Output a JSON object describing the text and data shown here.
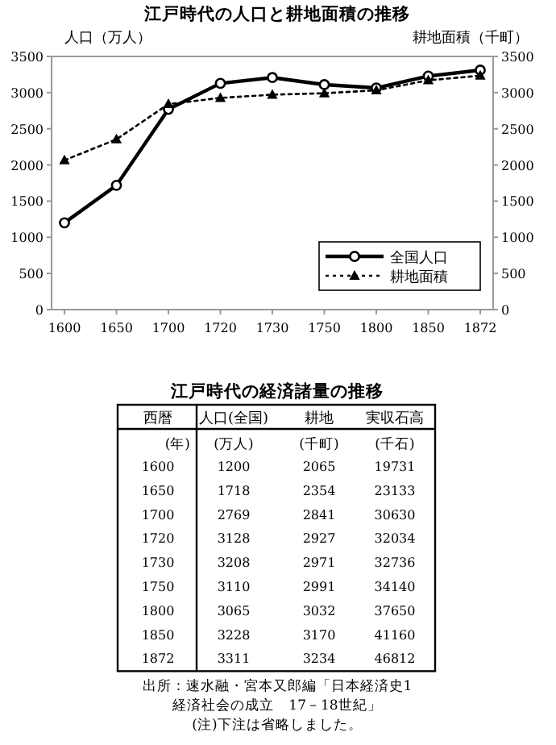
{
  "chart_data": [
    {
      "type": "line",
      "title": "江戸時代の人口と耕地面積の推移",
      "ylabel": "人口（万人）",
      "y2label": "耕地面積（千町）",
      "categories": [
        "1600",
        "1650",
        "1700",
        "1720",
        "1730",
        "1750",
        "1800",
        "1850",
        "1872"
      ],
      "series": [
        {
          "name": "全国人口",
          "color": "#000000",
          "marker": "circle",
          "line_style": "solid",
          "values": [
            1200,
            1718,
            2769,
            3128,
            3208,
            3110,
            3065,
            3228,
            3311
          ]
        },
        {
          "name": "耕地面積",
          "color": "#000000",
          "marker": "triangle",
          "line_style": "dotted",
          "values": [
            2065,
            2354,
            2841,
            2927,
            2971,
            2991,
            3032,
            3170,
            3234
          ]
        }
      ],
      "ylim": [
        0,
        3500
      ],
      "yticks": [
        0,
        500,
        1000,
        1500,
        2000,
        2500,
        3000,
        3500
      ],
      "y2lim": [
        0,
        3500
      ],
      "y2ticks": [
        0,
        500,
        1000,
        1500,
        2000,
        2500,
        3000,
        3500
      ],
      "legend": "bottom right",
      "grid": false
    },
    {
      "type": "heatmap",
      "title": "江戸時代の経済諸量の推移",
      "ylabel": "西暦",
      "categories": [
        "人口(全国)",
        "耕地",
        "実収石高"
      ],
      "data_labels": true,
      "y_categories": [
        "1600",
        "1650",
        "1700",
        "1720",
        "1730",
        "1750",
        "1800",
        "1850",
        "1872"
      ],
      "cells": [
        [
          1200,
          2065,
          19731
        ],
        [
          1718,
          2354,
          23133
        ],
        [
          2769,
          2841,
          30630
        ],
        [
          3128,
          2927,
          32034
        ],
        [
          3208,
          2971,
          32736
        ],
        [
          3110,
          2991,
          34140
        ],
        [
          3065,
          3032,
          37650
        ],
        [
          3228,
          3170,
          41160
        ],
        [
          3311,
          3234,
          46812
        ]
      ],
      "annotations": [
        "(年)",
        "(万人)",
        "(千町)",
        "(千石)",
        "出所：速水融・宮本又郎編「日本経済史1",
        "経済社会の成立　17－18世紀」",
        "(注)下注は省略しました。"
      ]
    }
  ]
}
